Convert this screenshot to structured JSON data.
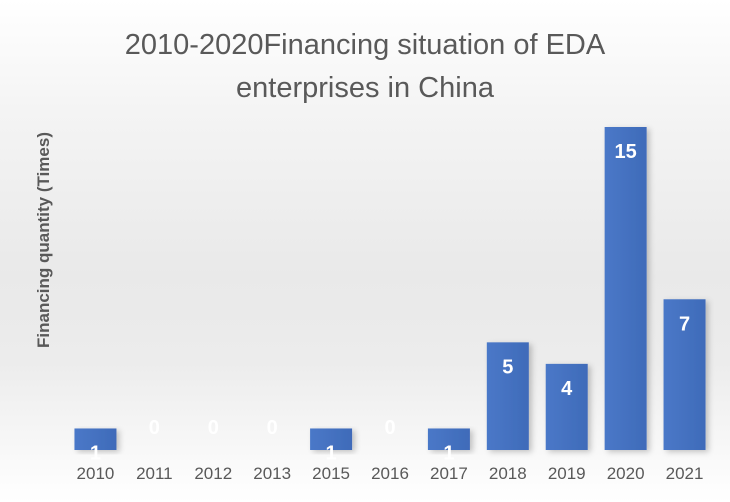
{
  "chart_data": {
    "type": "bar",
    "title": "2010-2020Financing situation of EDA enterprises in China",
    "xlabel": "",
    "ylabel": "Financing quantity (Times)",
    "categories": [
      "2010",
      "2011",
      "2012",
      "2013",
      "2015",
      "2016",
      "2017",
      "2018",
      "2019",
      "2020",
      "2021"
    ],
    "values": [
      1,
      0,
      0,
      0,
      1,
      0,
      1,
      5,
      4,
      15,
      7
    ],
    "ylim": [
      0,
      15
    ],
    "grid": false,
    "legend": "none",
    "bar_color": "#4472c4",
    "data_label_color": "#ffffff",
    "label_color": "#595959"
  }
}
